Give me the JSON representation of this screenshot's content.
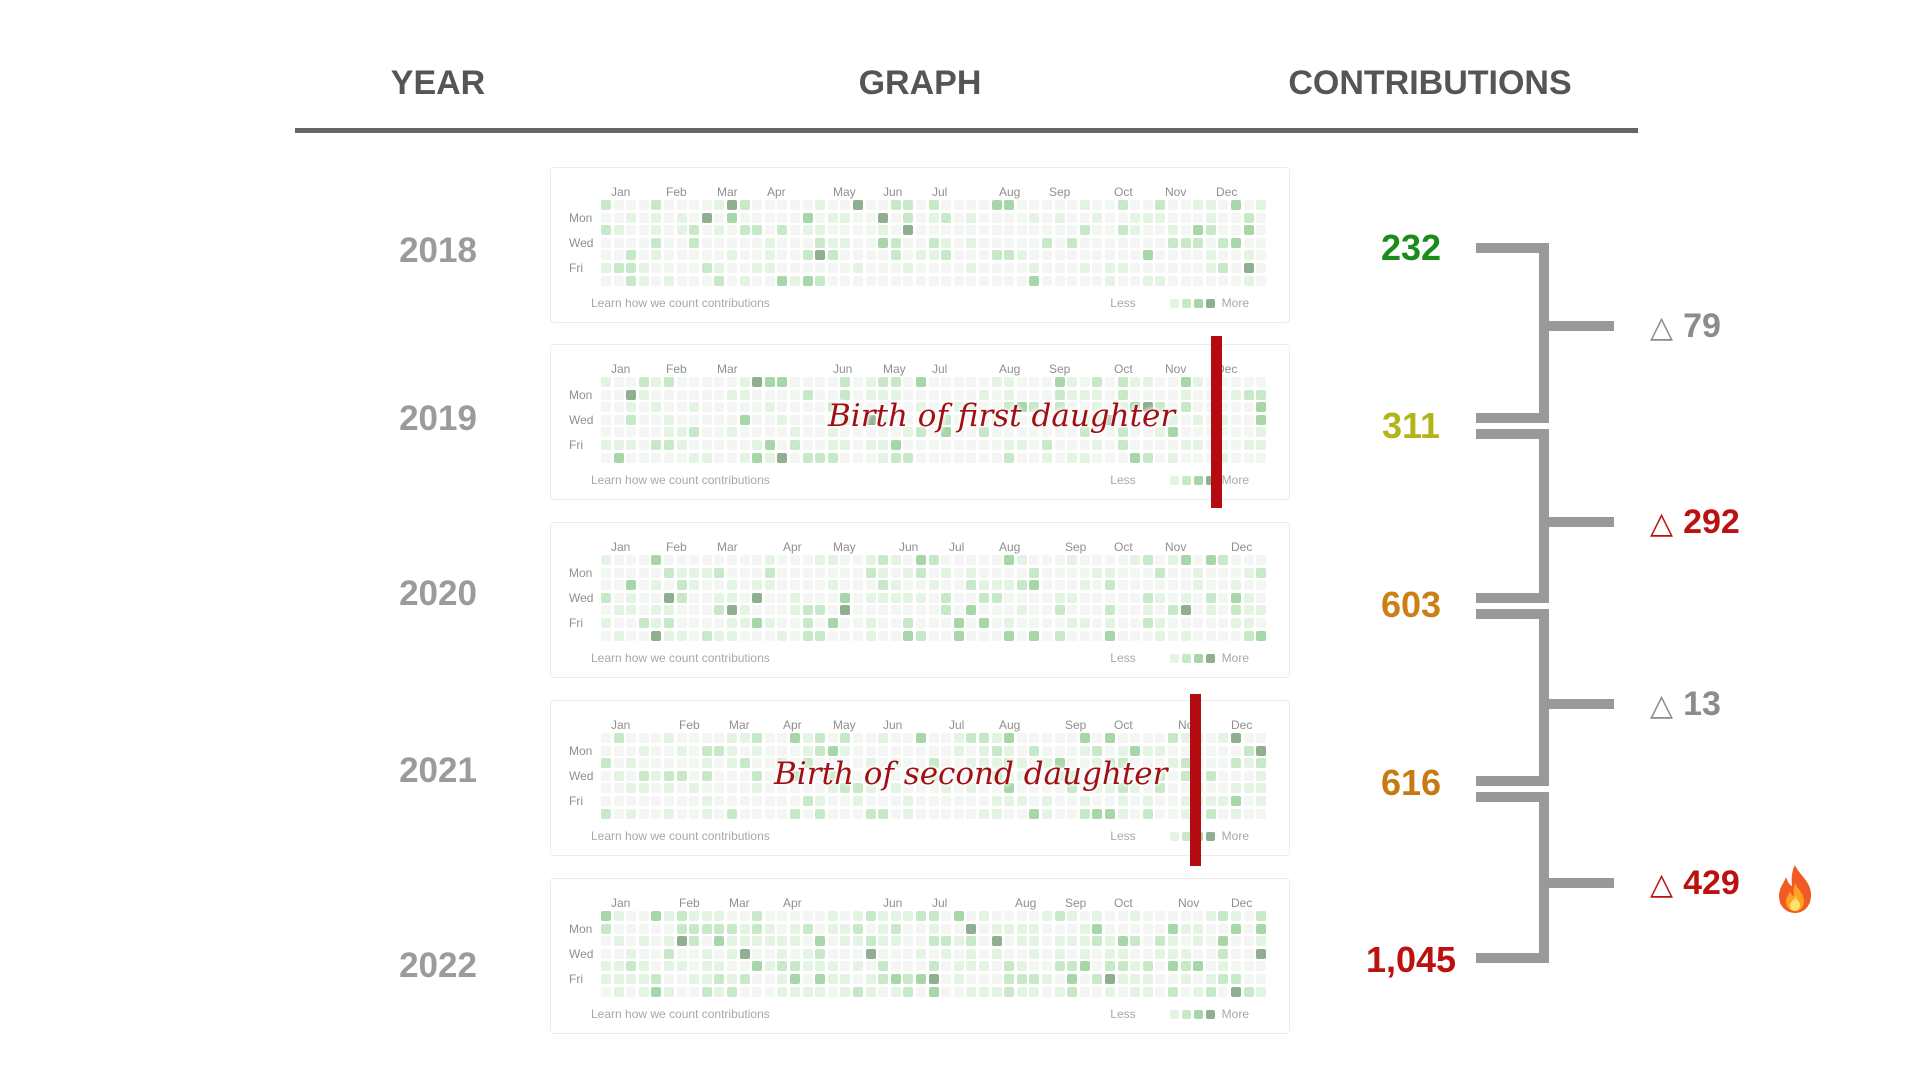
{
  "header": {
    "year_label": "YEAR",
    "graph_label": "GRAPH",
    "contributions_label": "CONTRIBUTIONS"
  },
  "graph_labels": {
    "months_2018": [
      "Jan",
      "Feb",
      "Mar",
      "Apr",
      "May",
      "Jun",
      "Jul",
      "Aug",
      "Sep",
      "Oct",
      "Nov",
      "Dec"
    ],
    "days": [
      "Mon",
      "Wed",
      "Fri"
    ],
    "footer_left": "Learn how we count contributions",
    "less": "Less",
    "more": "More"
  },
  "years": [
    {
      "year": "2018",
      "contributions": "232",
      "color": "#1a8c1a"
    },
    {
      "year": "2019",
      "contributions": "311",
      "color": "#b3b31a",
      "annotation": "Birth of first daughter"
    },
    {
      "year": "2020",
      "contributions": "603",
      "color": "#cc7f14"
    },
    {
      "year": "2021",
      "contributions": "616",
      "color": "#c87a12",
      "annotation": "Birth of second daughter"
    },
    {
      "year": "2022",
      "contributions": "1,045",
      "color": "#bb1111"
    }
  ],
  "deltas": [
    {
      "value": "79",
      "color": "#8c8c8c",
      "symbol": "△"
    },
    {
      "value": "292",
      "color": "#bb1111",
      "symbol": "△"
    },
    {
      "value": "13",
      "color": "#8c8c8c",
      "symbol": "△"
    },
    {
      "value": "429",
      "color": "#bb1111",
      "symbol": "△",
      "icon": "fire-icon"
    }
  ],
  "colors": {
    "header_text": "#555555",
    "year_text": "#9b9b9b",
    "bracket": "#999999",
    "annotation_bar": "#b30b10",
    "heat_levels": [
      "#f4f6f4",
      "#e3f4e3",
      "#c8e9c8",
      "#a7d7a8",
      "#8faf90"
    ]
  }
}
